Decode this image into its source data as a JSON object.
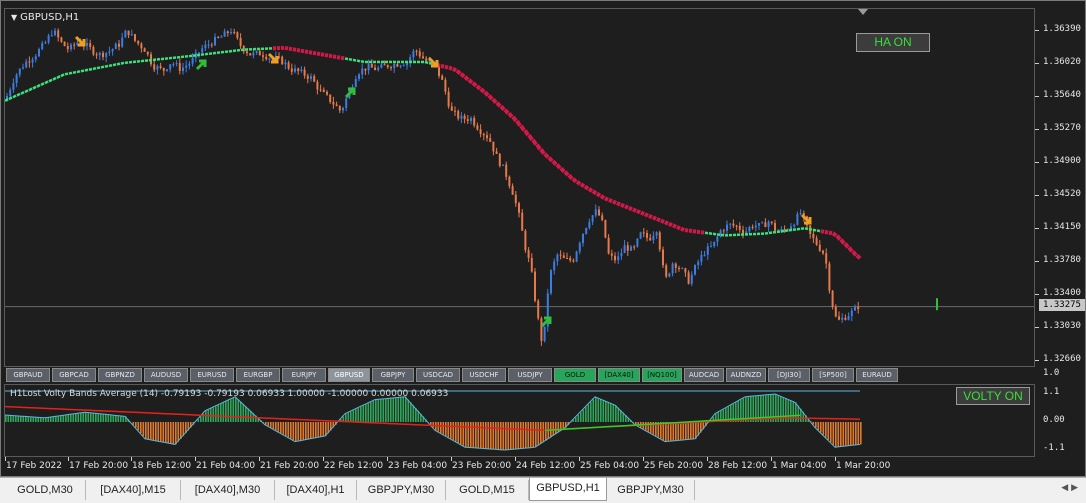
{
  "chart": {
    "title": "GBPUSD,H1",
    "ha_badge": "HA ON",
    "volty_badge": "VOLTY ON",
    "current_price": "1.33275",
    "price_levels": [
      "1.36390",
      "1.36020",
      "1.35640",
      "1.35270",
      "1.34900",
      "1.34520",
      "1.34150",
      "1.33780",
      "1.33400",
      "1.33030",
      "1.32660"
    ],
    "indicator_title": "H1Lost Volty Bands Average (14) -0.79193 -0.79193 0.06933 1.00000 -1.00000 0.00000 0.06933",
    "indicator_levels": [
      "1.1",
      "0.00",
      "-1.1"
    ],
    "indicator_top_label": "1.0",
    "time_labels": [
      "17 Feb 2022",
      "17 Feb 20:00",
      "18 Feb 12:00",
      "21 Feb 04:00",
      "21 Feb 20:00",
      "22 Feb 12:00",
      "23 Feb 04:00",
      "23 Feb 20:00",
      "24 Feb 12:00",
      "25 Feb 04:00",
      "25 Feb 20:00",
      "28 Feb 12:00",
      "1 Mar 04:00",
      "1 Mar 20:00"
    ]
  },
  "symbols": [
    {
      "label": "GBPAUD",
      "state": "normal"
    },
    {
      "label": "GBPCAD",
      "state": "normal"
    },
    {
      "label": "GBPNZD",
      "state": "normal"
    },
    {
      "label": "AUDUSD",
      "state": "normal"
    },
    {
      "label": "EURUSD",
      "state": "normal"
    },
    {
      "label": "EURGBP",
      "state": "normal"
    },
    {
      "label": "EURJPY",
      "state": "normal"
    },
    {
      "label": "GBPUSD",
      "state": "active"
    },
    {
      "label": "GBPJPY",
      "state": "normal"
    },
    {
      "label": "USDCAD",
      "state": "normal"
    },
    {
      "label": "USDCHF",
      "state": "normal"
    },
    {
      "label": "USDJPY",
      "state": "normal"
    },
    {
      "label": "GOLD",
      "state": "green"
    },
    {
      "label": "[DAX40]",
      "state": "green"
    },
    {
      "label": "[NQ100]",
      "state": "green"
    },
    {
      "label": "AUDCAD",
      "state": "normal"
    },
    {
      "label": "AUDNZD",
      "state": "normal"
    },
    {
      "label": "[DJI30]",
      "state": "normal"
    },
    {
      "label": "[SP500]",
      "state": "normal"
    },
    {
      "label": "EURAUD",
      "state": "normal"
    }
  ],
  "tabs": [
    {
      "label": "GOLD,M30",
      "active": false
    },
    {
      "label": "[DAX40],M15",
      "active": false
    },
    {
      "label": "[DAX40],M30",
      "active": false
    },
    {
      "label": "[DAX40],H1",
      "active": false
    },
    {
      "label": "GBPJPY,M30",
      "active": false
    },
    {
      "label": "GOLD,M15",
      "active": false
    },
    {
      "label": "GBPUSD,H1",
      "active": true
    },
    {
      "label": "GBPJPY,M30",
      "active": false
    }
  ],
  "colors": {
    "bull": "#3b7de0",
    "bear": "#e8794a",
    "ma_up": "#3de07a",
    "ma_down": "#d2194a",
    "arrow_buy": "#2fbf3a",
    "arrow_sell": "#f0a020",
    "hist_up": "#2ea55a",
    "hist_down": "#e07a2a"
  }
}
